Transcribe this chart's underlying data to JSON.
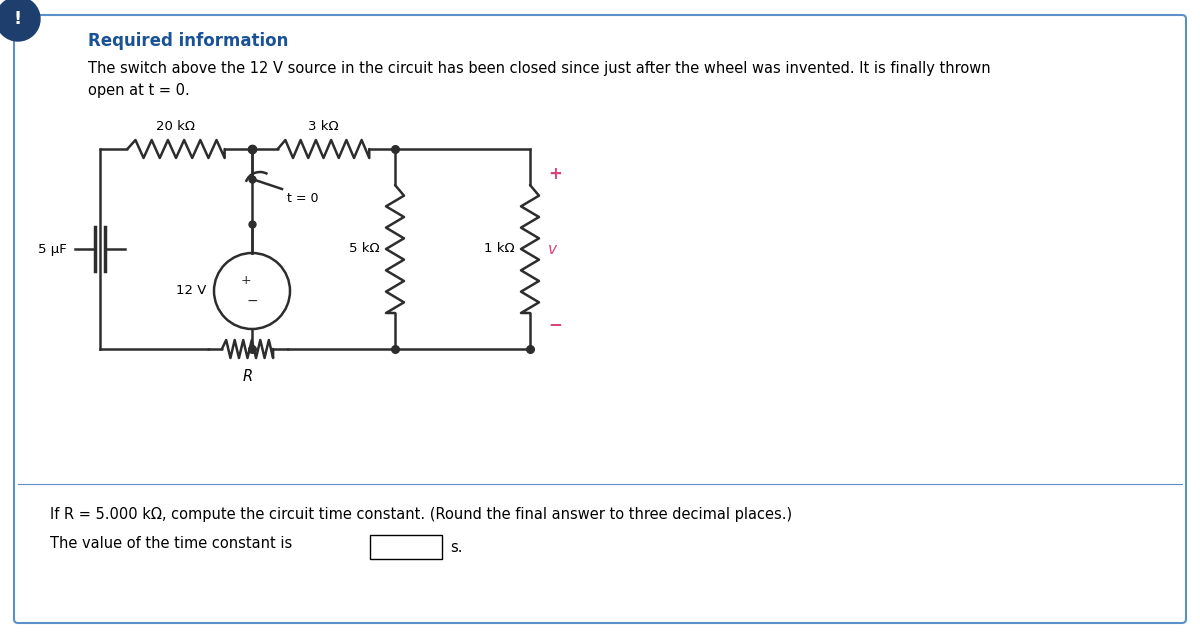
{
  "bg_color": "#ffffff",
  "border_color": "#5a8fc8",
  "header_color": "#1a5296",
  "header_text": "Required information",
  "body_text1": "The switch above the 12 V source in the circuit has been closed since just after the wheel was invented. It is finally thrown",
  "body_text2": "open at t = 0.",
  "question_text1": "If R = 5.000 kΩ, compute the circuit time constant. (Round the final answer to three decimal places.)",
  "question_text2": "The value of the time constant is",
  "question_suffix": "s.",
  "label_20k": "20 kΩ",
  "label_3k": "3 kΩ",
  "label_5uF": "5 μF",
  "label_12V": "12 V",
  "label_t0": "t = 0",
  "label_5k": "5 kΩ",
  "label_1k": "1 kΩ",
  "label_R": "R",
  "label_plus": "+",
  "label_minus": "−",
  "label_v": "v",
  "icon_color": "#1e3f6e",
  "icon_text_color": "#ffffff",
  "wire_color": "#2d2d2d",
  "pink_color": "#d6427a",
  "font_size_header": 12,
  "font_size_body": 10.5,
  "font_size_label": 9.5,
  "font_size_question": 10.5
}
